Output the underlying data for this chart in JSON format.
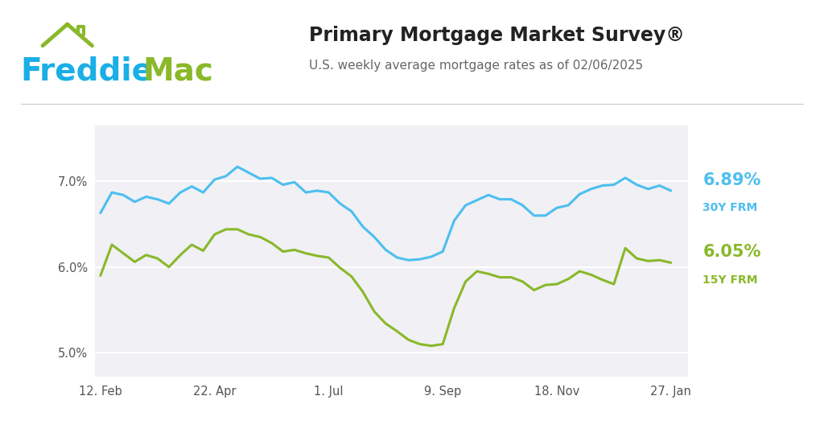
{
  "title": "Primary Mortgage Market Survey®",
  "subtitle": "U.S. weekly average mortgage rates as of 02/06/2025",
  "title_fontsize": 17,
  "subtitle_fontsize": 11,
  "bg_color": "#ffffff",
  "plot_bg_color": "#f0f0f5",
  "grid_color": "#ffffff",
  "line_30y_color": "#4dbfef",
  "line_15y_color": "#8ab82a",
  "label_30y_color": "#4dbfef",
  "label_15y_color": "#8ab82a",
  "rate_30y_label": "6.89%",
  "rate_15y_label": "6.05%",
  "frm_30y_label": "30Y FRM",
  "frm_15y_label": "15Y FRM",
  "x_ticks": [
    "12. Feb",
    "22. Apr",
    "1. Jul",
    "9. Sep",
    "18. Nov",
    "27. Jan"
  ],
  "x_tick_positions": [
    0,
    10,
    20,
    30,
    40,
    50
  ],
  "y_ticks": [
    5.0,
    6.0,
    7.0
  ],
  "ylim": [
    4.72,
    7.65
  ],
  "xlim": [
    -0.5,
    51.5
  ],
  "freddie_blue": "#1aafe6",
  "freddie_green": "#8ab82a",
  "roof_color": "#8ab82a",
  "data_30y": [
    6.63,
    6.87,
    6.84,
    6.76,
    6.82,
    6.79,
    6.74,
    6.87,
    6.94,
    6.87,
    7.02,
    7.06,
    7.17,
    7.1,
    7.03,
    7.04,
    6.96,
    6.99,
    6.87,
    6.89,
    6.87,
    6.74,
    6.65,
    6.47,
    6.35,
    6.2,
    6.11,
    6.08,
    6.09,
    6.12,
    6.18,
    6.54,
    6.72,
    6.78,
    6.84,
    6.79,
    6.79,
    6.72,
    6.6,
    6.6,
    6.69,
    6.72,
    6.85,
    6.91,
    6.95,
    6.96,
    7.04,
    6.96,
    6.91,
    6.95,
    6.89
  ],
  "data_15y": [
    5.9,
    6.26,
    6.16,
    6.06,
    6.14,
    6.1,
    6.0,
    6.14,
    6.26,
    6.19,
    6.38,
    6.44,
    6.44,
    6.38,
    6.35,
    6.28,
    6.18,
    6.2,
    6.16,
    6.13,
    6.11,
    5.99,
    5.89,
    5.71,
    5.48,
    5.34,
    5.25,
    5.15,
    5.1,
    5.08,
    5.1,
    5.52,
    5.83,
    5.95,
    5.92,
    5.88,
    5.88,
    5.83,
    5.73,
    5.79,
    5.8,
    5.86,
    5.95,
    5.91,
    5.85,
    5.8,
    6.22,
    6.1,
    6.07,
    6.08,
    6.05
  ]
}
